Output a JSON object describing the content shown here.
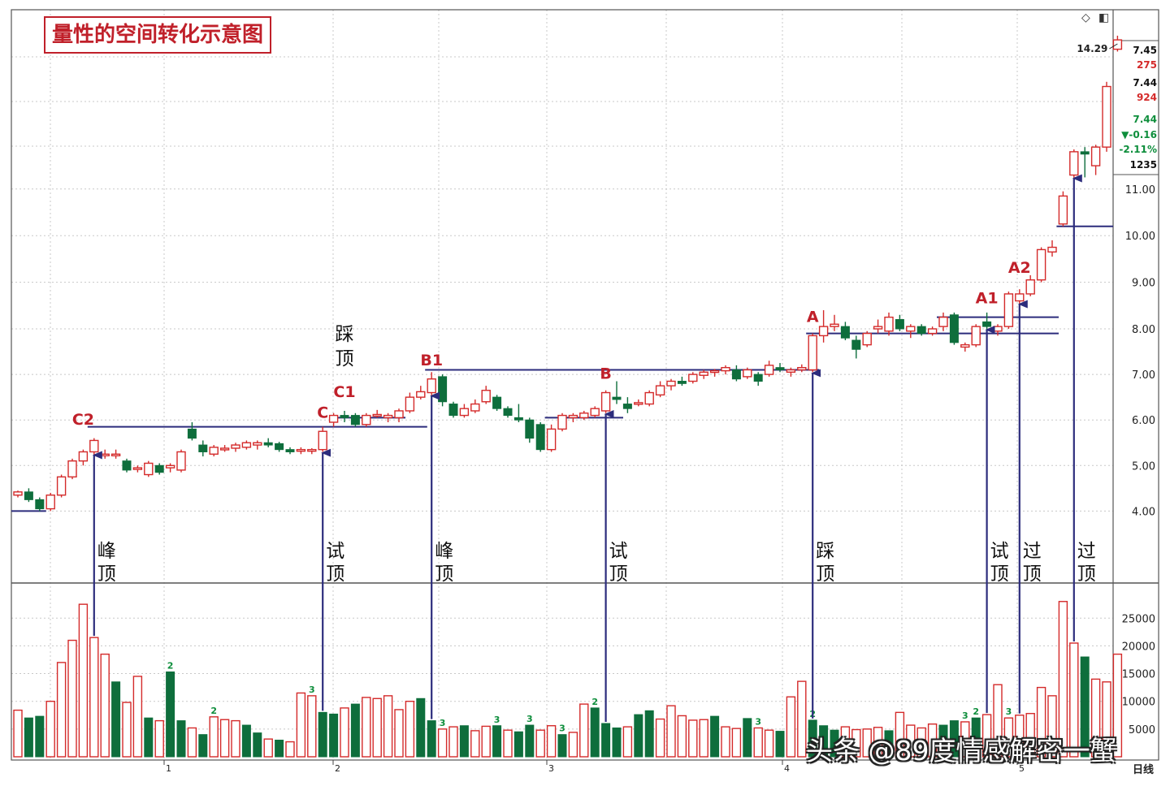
{
  "title": "量性的空间转化示意图",
  "icons": {
    "diamond": "diamond-icon",
    "window": "window-icon"
  },
  "colors": {
    "up": "#d42a2a",
    "down": "#0e6e3c",
    "line": "#2c2c7c",
    "grid": "#c8c8c8",
    "label_red": "#c0202a"
  },
  "watermark": "头条 @89度情感解密一蟹",
  "price_panel": {
    "readouts": [
      {
        "text": "7.45",
        "color": "#111111"
      },
      {
        "text": "275",
        "color": "#d42a2a"
      },
      {
        "text": "7.44",
        "color": "#111111"
      },
      {
        "text": "924",
        "color": "#d42a2a"
      },
      {
        "text": "7.44",
        "color": "#0e8e3c"
      },
      {
        "text": "▼-0.16",
        "color": "#0e8e3c"
      },
      {
        "text": "-2.11%",
        "color": "#0e8e3c"
      },
      {
        "text": "1235",
        "color": "#111111"
      }
    ],
    "high_marker": "14.29"
  },
  "chart_data": {
    "type": "candlestick",
    "y_ticks": [
      "11.00",
      "10.00",
      "9.00",
      "8.00",
      "7.00",
      "6.00",
      "5.00",
      "4.00"
    ],
    "volume_ticks": [
      "25000",
      "20000",
      "15000",
      "10000",
      "5000"
    ],
    "x_ticks": [
      "1",
      "2",
      "3",
      "4",
      "5"
    ],
    "period_label": "日线",
    "candles": [
      [
        4.35,
        4.45,
        4.3,
        4.42
      ],
      [
        4.42,
        4.5,
        4.2,
        4.25
      ],
      [
        4.25,
        4.3,
        4.0,
        4.05
      ],
      [
        4.05,
        4.4,
        4.0,
        4.35
      ],
      [
        4.35,
        4.8,
        4.3,
        4.75
      ],
      [
        4.75,
        5.15,
        4.7,
        5.1
      ],
      [
        5.1,
        5.35,
        5.0,
        5.3
      ],
      [
        5.3,
        5.6,
        5.2,
        5.55
      ],
      [
        5.25,
        5.35,
        5.15,
        5.25
      ],
      [
        5.25,
        5.35,
        5.15,
        5.25
      ],
      [
        5.1,
        5.15,
        4.85,
        4.9
      ],
      [
        4.95,
        5.0,
        4.85,
        4.95
      ],
      [
        4.8,
        5.1,
        4.75,
        5.05
      ],
      [
        5.0,
        5.05,
        4.8,
        4.85
      ],
      [
        4.95,
        5.05,
        4.85,
        5.0
      ],
      [
        4.9,
        5.35,
        4.85,
        5.3
      ],
      [
        5.8,
        5.95,
        5.55,
        5.6
      ],
      [
        5.45,
        5.55,
        5.2,
        5.3
      ],
      [
        5.25,
        5.45,
        5.2,
        5.4
      ],
      [
        5.35,
        5.45,
        5.3,
        5.38
      ],
      [
        5.38,
        5.5,
        5.3,
        5.45
      ],
      [
        5.4,
        5.55,
        5.35,
        5.5
      ],
      [
        5.45,
        5.55,
        5.35,
        5.5
      ],
      [
        5.5,
        5.6,
        5.4,
        5.45
      ],
      [
        5.48,
        5.52,
        5.3,
        5.35
      ],
      [
        5.35,
        5.4,
        5.25,
        5.3
      ],
      [
        5.33,
        5.4,
        5.25,
        5.35
      ],
      [
        5.33,
        5.38,
        5.25,
        5.35
      ],
      [
        5.35,
        5.85,
        5.3,
        5.75
      ],
      [
        5.95,
        6.15,
        5.85,
        6.1
      ],
      [
        6.1,
        6.2,
        5.95,
        6.05
      ],
      [
        6.1,
        6.15,
        5.85,
        5.9
      ],
      [
        5.9,
        6.15,
        5.85,
        6.1
      ],
      [
        6.12,
        6.22,
        6.05,
        6.12
      ],
      [
        6.05,
        6.15,
        5.95,
        6.1
      ],
      [
        6.05,
        6.25,
        5.95,
        6.2
      ],
      [
        6.2,
        6.6,
        6.15,
        6.5
      ],
      [
        6.5,
        6.75,
        6.45,
        6.62
      ],
      [
        6.6,
        7.05,
        6.5,
        6.9
      ],
      [
        6.95,
        7.0,
        6.3,
        6.4
      ],
      [
        6.35,
        6.4,
        6.05,
        6.1
      ],
      [
        6.1,
        6.35,
        6.05,
        6.25
      ],
      [
        6.2,
        6.45,
        6.15,
        6.35
      ],
      [
        6.4,
        6.75,
        6.35,
        6.65
      ],
      [
        6.5,
        6.55,
        6.2,
        6.25
      ],
      [
        6.25,
        6.3,
        6.05,
        6.1
      ],
      [
        6.05,
        6.35,
        5.95,
        6.0
      ],
      [
        6.0,
        6.05,
        5.5,
        5.6
      ],
      [
        5.9,
        5.95,
        5.3,
        5.35
      ],
      [
        5.35,
        5.9,
        5.3,
        5.8
      ],
      [
        5.8,
        6.15,
        5.75,
        6.1
      ],
      [
        6.05,
        6.15,
        5.95,
        6.1
      ],
      [
        6.05,
        6.2,
        6.0,
        6.15
      ],
      [
        6.1,
        6.3,
        6.05,
        6.25
      ],
      [
        6.2,
        6.65,
        6.15,
        6.6
      ],
      [
        6.5,
        6.85,
        6.35,
        6.45
      ],
      [
        6.35,
        6.5,
        6.15,
        6.25
      ],
      [
        6.35,
        6.45,
        6.3,
        6.38
      ],
      [
        6.35,
        6.65,
        6.3,
        6.6
      ],
      [
        6.55,
        6.85,
        6.5,
        6.75
      ],
      [
        6.75,
        6.9,
        6.65,
        6.85
      ],
      [
        6.85,
        6.95,
        6.75,
        6.8
      ],
      [
        6.85,
        7.05,
        6.8,
        7.0
      ],
      [
        6.98,
        7.1,
        6.9,
        7.05
      ],
      [
        7.05,
        7.12,
        6.95,
        7.08
      ],
      [
        7.08,
        7.2,
        7.0,
        7.15
      ],
      [
        7.1,
        7.2,
        6.85,
        6.9
      ],
      [
        6.95,
        7.15,
        6.9,
        7.1
      ],
      [
        7.0,
        7.05,
        6.75,
        6.85
      ],
      [
        7.0,
        7.3,
        6.95,
        7.2
      ],
      [
        7.15,
        7.25,
        7.05,
        7.1
      ],
      [
        7.05,
        7.15,
        6.95,
        7.1
      ],
      [
        7.1,
        7.22,
        7.05,
        7.15
      ],
      [
        7.1,
        7.9,
        7.05,
        7.85
      ],
      [
        7.85,
        8.4,
        7.7,
        8.05
      ],
      [
        8.05,
        8.3,
        7.95,
        8.1
      ],
      [
        8.05,
        8.15,
        7.75,
        7.8
      ],
      [
        7.75,
        7.85,
        7.35,
        7.55
      ],
      [
        7.65,
        7.95,
        7.6,
        7.9
      ],
      [
        8.0,
        8.2,
        7.9,
        8.05
      ],
      [
        7.95,
        8.35,
        7.85,
        8.25
      ],
      [
        8.2,
        8.3,
        7.95,
        8.0
      ],
      [
        7.95,
        8.1,
        7.8,
        8.05
      ],
      [
        8.05,
        8.1,
        7.85,
        7.9
      ],
      [
        7.9,
        8.05,
        7.85,
        8.0
      ],
      [
        8.05,
        8.35,
        7.95,
        8.25
      ],
      [
        8.3,
        8.35,
        7.65,
        7.7
      ],
      [
        7.6,
        7.7,
        7.5,
        7.65
      ],
      [
        7.65,
        8.1,
        7.6,
        8.05
      ],
      [
        8.15,
        8.35,
        7.95,
        8.05
      ],
      [
        7.95,
        8.1,
        7.85,
        8.05
      ],
      [
        8.05,
        8.8,
        8.0,
        8.75
      ],
      [
        8.6,
        8.85,
        8.5,
        8.75
      ],
      [
        8.75,
        9.15,
        8.7,
        9.05
      ],
      [
        9.05,
        9.75,
        9.0,
        9.7
      ],
      [
        9.65,
        9.9,
        9.55,
        9.75
      ],
      [
        10.25,
        10.95,
        10.2,
        10.85
      ],
      [
        11.3,
        11.85,
        10.95,
        11.8
      ],
      [
        11.8,
        11.9,
        11.25,
        11.75
      ],
      [
        11.5,
        11.95,
        11.3,
        11.9
      ],
      [
        11.9,
        13.3,
        11.8,
        13.2
      ],
      [
        14.0,
        14.29,
        13.95,
        14.2
      ]
    ],
    "volumes": [
      [
        8400,
        "up"
      ],
      [
        7000,
        "down"
      ],
      [
        7300,
        "down"
      ],
      [
        10000,
        "up"
      ],
      [
        17000,
        "up"
      ],
      [
        21000,
        "up"
      ],
      [
        27500,
        "up"
      ],
      [
        21500,
        "up"
      ],
      [
        18500,
        "up"
      ],
      [
        13500,
        "down"
      ],
      [
        9800,
        "up"
      ],
      [
        14500,
        "up"
      ],
      [
        7000,
        "down"
      ],
      [
        6500,
        "up"
      ],
      [
        15300,
        "down"
      ],
      [
        6500,
        "down"
      ],
      [
        5200,
        "up"
      ],
      [
        4000,
        "down"
      ],
      [
        7200,
        "up"
      ],
      [
        6700,
        "up"
      ],
      [
        6500,
        "up"
      ],
      [
        5700,
        "down"
      ],
      [
        4300,
        "down"
      ],
      [
        3200,
        "up"
      ],
      [
        3000,
        "down"
      ],
      [
        2700,
        "up"
      ],
      [
        11500,
        "up"
      ],
      [
        11000,
        "up"
      ],
      [
        8000,
        "down"
      ],
      [
        7700,
        "down"
      ],
      [
        8800,
        "up"
      ],
      [
        9500,
        "down"
      ],
      [
        10700,
        "up"
      ],
      [
        10500,
        "up"
      ],
      [
        11000,
        "up"
      ],
      [
        8500,
        "up"
      ],
      [
        10000,
        "up"
      ],
      [
        10500,
        "down"
      ],
      [
        6500,
        "down"
      ],
      [
        5000,
        "up"
      ],
      [
        5400,
        "up"
      ],
      [
        5600,
        "down"
      ],
      [
        4700,
        "up"
      ],
      [
        5500,
        "up"
      ],
      [
        5600,
        "down"
      ],
      [
        4800,
        "up"
      ],
      [
        4500,
        "down"
      ],
      [
        5700,
        "down"
      ],
      [
        4800,
        "up"
      ],
      [
        5600,
        "up"
      ],
      [
        4000,
        "down"
      ],
      [
        4400,
        "up"
      ],
      [
        9500,
        "up"
      ],
      [
        8800,
        "down"
      ],
      [
        6000,
        "down"
      ],
      [
        5200,
        "down"
      ],
      [
        5400,
        "up"
      ],
      [
        7600,
        "down"
      ],
      [
        8300,
        "down"
      ],
      [
        6800,
        "up"
      ],
      [
        9200,
        "up"
      ],
      [
        7400,
        "up"
      ],
      [
        6600,
        "up"
      ],
      [
        6700,
        "up"
      ],
      [
        7300,
        "down"
      ],
      [
        5400,
        "up"
      ],
      [
        5100,
        "up"
      ],
      [
        6900,
        "down"
      ],
      [
        5200,
        "up"
      ],
      [
        4800,
        "up"
      ],
      [
        4600,
        "down"
      ],
      [
        10800,
        "up"
      ],
      [
        13600,
        "up"
      ],
      [
        6600,
        "down"
      ],
      [
        5600,
        "down"
      ],
      [
        4800,
        "down"
      ],
      [
        5400,
        "up"
      ],
      [
        4900,
        "up"
      ],
      [
        5000,
        "up"
      ],
      [
        5300,
        "up"
      ],
      [
        4700,
        "down"
      ],
      [
        8000,
        "up"
      ],
      [
        5700,
        "up"
      ],
      [
        5200,
        "up"
      ],
      [
        5900,
        "up"
      ],
      [
        5700,
        "down"
      ],
      [
        6500,
        "down"
      ],
      [
        6300,
        "up"
      ],
      [
        7000,
        "down"
      ],
      [
        7600,
        "up"
      ],
      [
        13000,
        "up"
      ],
      [
        7000,
        "up"
      ],
      [
        7500,
        "up"
      ],
      [
        7800,
        "up"
      ],
      [
        12500,
        "up"
      ],
      [
        11000,
        "up"
      ],
      [
        28000,
        "up"
      ],
      [
        20500,
        "up"
      ],
      [
        18000,
        "down"
      ],
      [
        14000,
        "up"
      ],
      [
        13500,
        "up"
      ],
      [
        18500,
        "up"
      ]
    ],
    "volume_notes": [
      {
        "text": "2",
        "index": 14
      },
      {
        "text": "2",
        "index": 18
      },
      {
        "text": "3",
        "index": 27
      },
      {
        "text": "3",
        "index": 39
      },
      {
        "text": "3",
        "index": 44
      },
      {
        "text": "3",
        "index": 47
      },
      {
        "text": "3",
        "index": 50
      },
      {
        "text": "2",
        "index": 53
      },
      {
        "text": "3",
        "index": 68
      },
      {
        "text": "2",
        "index": 73
      },
      {
        "text": "3",
        "index": 87
      },
      {
        "text": "2",
        "index": 88
      },
      {
        "text": "3",
        "index": 91
      }
    ],
    "levels": [
      {
        "y": 4.0,
        "from": 0,
        "to": 2
      },
      {
        "y": 5.85,
        "from": 7,
        "to": 37
      },
      {
        "y": 6.05,
        "from": 30,
        "to": 35
      },
      {
        "y": 6.05,
        "from": 49,
        "to": 55
      },
      {
        "y": 7.1,
        "from": 38,
        "to": 73
      },
      {
        "y": 7.9,
        "from": 73,
        "to": 95
      },
      {
        "y": 8.25,
        "from": 85,
        "to": 95
      },
      {
        "y": 10.2,
        "from": 96,
        "to": 100
      }
    ],
    "level_labels": [
      {
        "text": "C2",
        "index": 6,
        "y": 5.9
      },
      {
        "text": "C",
        "index": 28,
        "y": 6.05
      },
      {
        "text": "C1",
        "index": 30,
        "y": 6.5
      },
      {
        "text": "B1",
        "index": 38,
        "y": 7.2
      },
      {
        "text": "B",
        "index": 54,
        "y": 6.9
      },
      {
        "text": "A",
        "index": 73,
        "y": 8.15
      },
      {
        "text": "A1",
        "index": 89,
        "y": 8.55
      },
      {
        "text": "A2",
        "index": 92,
        "y": 9.2
      }
    ],
    "vertical_labels": [
      {
        "text": "踩顶",
        "index": 30,
        "y": 7.75
      }
    ],
    "annotations": [
      {
        "text": "峰顶",
        "index": 7
      },
      {
        "text": "试顶",
        "index": 28
      },
      {
        "text": "峰顶",
        "index": 38
      },
      {
        "text": "试顶",
        "index": 54
      },
      {
        "text": "踩顶",
        "index": 73
      },
      {
        "text": "试顶",
        "index": 89
      },
      {
        "text": "过顶",
        "index": 92
      },
      {
        "text": "过顶",
        "index": 97
      }
    ]
  }
}
